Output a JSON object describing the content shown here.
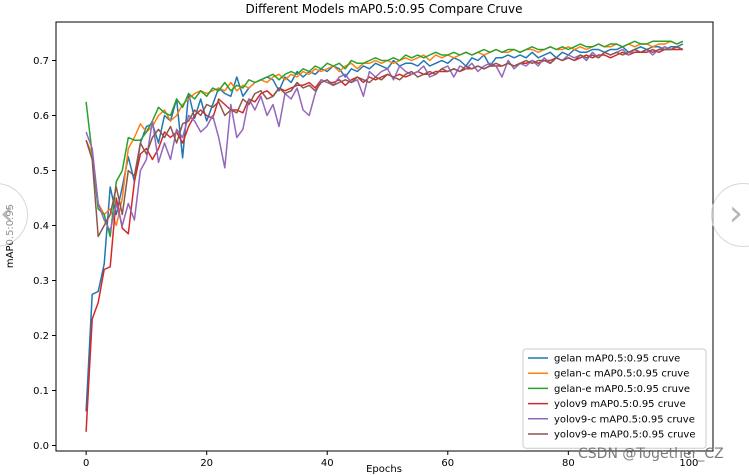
{
  "watermark": "CSDN @Together_CZ",
  "chart_data": {
    "type": "line",
    "title": "Different Models mAP0.5:0.95 Compare Cruve",
    "xlabel": "Epochs",
    "ylabel": "mAP0.5:0.95",
    "xlim": [
      -5,
      104
    ],
    "ylim": [
      -0.01,
      0.77
    ],
    "xticks": [
      0,
      20,
      40,
      60,
      80,
      100
    ],
    "yticks": [
      0.0,
      0.1,
      0.2,
      0.3,
      0.4,
      0.5,
      0.6,
      0.7
    ],
    "grid": false,
    "legend_position": "lower-right",
    "x": [
      0,
      1,
      2,
      3,
      4,
      5,
      6,
      7,
      8,
      9,
      10,
      11,
      12,
      13,
      14,
      15,
      16,
      17,
      18,
      19,
      20,
      21,
      22,
      23,
      24,
      25,
      26,
      27,
      28,
      29,
      30,
      31,
      32,
      33,
      34,
      35,
      36,
      37,
      38,
      39,
      40,
      41,
      42,
      43,
      44,
      45,
      46,
      47,
      48,
      49,
      50,
      51,
      52,
      53,
      54,
      55,
      56,
      57,
      58,
      59,
      60,
      61,
      62,
      63,
      64,
      65,
      66,
      67,
      68,
      69,
      70,
      71,
      72,
      73,
      74,
      75,
      76,
      77,
      78,
      79,
      80,
      81,
      82,
      83,
      84,
      85,
      86,
      87,
      88,
      89,
      90,
      91,
      92,
      93,
      94,
      95,
      96,
      97,
      98,
      99
    ],
    "series": [
      {
        "name": "gelan mAP0.5:0.95 cruve",
        "color": "#1f77b4",
        "values": [
          0.062,
          0.275,
          0.28,
          0.33,
          0.47,
          0.42,
          0.47,
          0.525,
          0.48,
          0.55,
          0.58,
          0.585,
          0.55,
          0.6,
          0.59,
          0.63,
          0.523,
          0.64,
          0.595,
          0.63,
          0.59,
          0.62,
          0.65,
          0.64,
          0.635,
          0.67,
          0.635,
          0.65,
          0.66,
          0.665,
          0.67,
          0.665,
          0.645,
          0.67,
          0.66,
          0.68,
          0.67,
          0.68,
          0.675,
          0.685,
          0.68,
          0.69,
          0.685,
          0.67,
          0.685,
          0.68,
          0.69,
          0.685,
          0.695,
          0.69,
          0.685,
          0.7,
          0.69,
          0.695,
          0.695,
          0.69,
          0.7,
          0.69,
          0.695,
          0.7,
          0.695,
          0.705,
          0.7,
          0.69,
          0.705,
          0.7,
          0.71,
          0.69,
          0.705,
          0.705,
          0.71,
          0.705,
          0.71,
          0.705,
          0.715,
          0.705,
          0.71,
          0.715,
          0.705,
          0.715,
          0.71,
          0.72,
          0.715,
          0.715,
          0.72,
          0.72,
          0.715,
          0.72,
          0.72,
          0.725,
          0.715,
          0.72,
          0.725,
          0.72,
          0.725,
          0.725,
          0.72,
          0.725,
          0.725,
          0.73
        ]
      },
      {
        "name": "gelan-c mAP0.5:0.95 cruve",
        "color": "#ff7f0e",
        "values": [
          0.555,
          0.53,
          0.44,
          0.42,
          0.43,
          0.4,
          0.45,
          0.54,
          0.56,
          0.585,
          0.57,
          0.58,
          0.6,
          0.61,
          0.59,
          0.6,
          0.62,
          0.63,
          0.64,
          0.645,
          0.64,
          0.645,
          0.65,
          0.645,
          0.66,
          0.645,
          0.655,
          0.65,
          0.66,
          0.665,
          0.66,
          0.67,
          0.675,
          0.665,
          0.675,
          0.67,
          0.68,
          0.675,
          0.685,
          0.68,
          0.685,
          0.69,
          0.68,
          0.69,
          0.695,
          0.685,
          0.695,
          0.695,
          0.7,
          0.695,
          0.7,
          0.695,
          0.7,
          0.705,
          0.7,
          0.705,
          0.71,
          0.7,
          0.71,
          0.705,
          0.71,
          0.705,
          0.71,
          0.715,
          0.71,
          0.715,
          0.71,
          0.715,
          0.72,
          0.715,
          0.715,
          0.72,
          0.715,
          0.72,
          0.72,
          0.715,
          0.72,
          0.725,
          0.72,
          0.72,
          0.725,
          0.72,
          0.725,
          0.72,
          0.725,
          0.73,
          0.725,
          0.725,
          0.73,
          0.725,
          0.73,
          0.725,
          0.73,
          0.73,
          0.725,
          0.73,
          0.73,
          0.735,
          0.73,
          0.735
        ]
      },
      {
        "name": "gelan-e mAP0.5:0.95 cruve",
        "color": "#2ca02c",
        "values": [
          0.625,
          0.53,
          0.43,
          0.42,
          0.38,
          0.48,
          0.5,
          0.56,
          0.555,
          0.555,
          0.57,
          0.59,
          0.615,
          0.605,
          0.6,
          0.63,
          0.615,
          0.64,
          0.63,
          0.645,
          0.635,
          0.65,
          0.645,
          0.66,
          0.645,
          0.655,
          0.65,
          0.665,
          0.66,
          0.665,
          0.67,
          0.675,
          0.665,
          0.675,
          0.68,
          0.675,
          0.685,
          0.68,
          0.69,
          0.685,
          0.695,
          0.69,
          0.695,
          0.685,
          0.7,
          0.695,
          0.695,
          0.7,
          0.705,
          0.7,
          0.7,
          0.705,
          0.7,
          0.71,
          0.705,
          0.71,
          0.705,
          0.71,
          0.715,
          0.71,
          0.71,
          0.715,
          0.71,
          0.715,
          0.71,
          0.715,
          0.72,
          0.715,
          0.72,
          0.715,
          0.72,
          0.72,
          0.715,
          0.72,
          0.725,
          0.72,
          0.72,
          0.725,
          0.72,
          0.725,
          0.72,
          0.725,
          0.73,
          0.725,
          0.725,
          0.73,
          0.725,
          0.73,
          0.73,
          0.725,
          0.73,
          0.735,
          0.73,
          0.73,
          0.735,
          0.735,
          0.735,
          0.735,
          0.73,
          0.735
        ]
      },
      {
        "name": "yolov9 mAP0.5:0.95 cruve",
        "color": "#d62728",
        "values": [
          0.025,
          0.23,
          0.26,
          0.32,
          0.325,
          0.45,
          0.395,
          0.385,
          0.48,
          0.53,
          0.54,
          0.52,
          0.54,
          0.57,
          0.56,
          0.57,
          0.55,
          0.58,
          0.6,
          0.61,
          0.6,
          0.595,
          0.63,
          0.62,
          0.61,
          0.61,
          0.605,
          0.63,
          0.625,
          0.64,
          0.645,
          0.635,
          0.65,
          0.645,
          0.65,
          0.655,
          0.655,
          0.66,
          0.65,
          0.665,
          0.66,
          0.66,
          0.665,
          0.655,
          0.665,
          0.67,
          0.66,
          0.67,
          0.665,
          0.67,
          0.675,
          0.67,
          0.675,
          0.67,
          0.675,
          0.68,
          0.675,
          0.675,
          0.68,
          0.68,
          0.68,
          0.685,
          0.68,
          0.685,
          0.685,
          0.69,
          0.685,
          0.69,
          0.69,
          0.69,
          0.695,
          0.69,
          0.695,
          0.695,
          0.7,
          0.695,
          0.7,
          0.7,
          0.705,
          0.7,
          0.705,
          0.7,
          0.705,
          0.71,
          0.705,
          0.71,
          0.71,
          0.705,
          0.71,
          0.715,
          0.71,
          0.715,
          0.715,
          0.715,
          0.72,
          0.715,
          0.72,
          0.72,
          0.72,
          0.72
        ]
      },
      {
        "name": "yolov9-c mAP0.5:0.95 cruve",
        "color": "#9467bd",
        "values": [
          0.57,
          0.54,
          0.44,
          0.41,
          0.39,
          0.44,
          0.4,
          0.44,
          0.41,
          0.5,
          0.52,
          0.59,
          0.515,
          0.55,
          0.52,
          0.575,
          0.56,
          0.6,
          0.59,
          0.57,
          0.58,
          0.6,
          0.56,
          0.505,
          0.62,
          0.56,
          0.575,
          0.63,
          0.61,
          0.635,
          0.6,
          0.62,
          0.58,
          0.64,
          0.63,
          0.65,
          0.61,
          0.6,
          0.64,
          0.665,
          0.66,
          0.655,
          0.67,
          0.675,
          0.66,
          0.665,
          0.635,
          0.68,
          0.67,
          0.68,
          0.685,
          0.665,
          0.69,
          0.68,
          0.675,
          0.68,
          0.69,
          0.67,
          0.675,
          0.685,
          0.69,
          0.67,
          0.69,
          0.685,
          0.695,
          0.68,
          0.69,
          0.695,
          0.69,
          0.67,
          0.7,
          0.685,
          0.695,
          0.69,
          0.7,
          0.69,
          0.705,
          0.695,
          0.705,
          0.7,
          0.71,
          0.705,
          0.71,
          0.7,
          0.715,
          0.705,
          0.715,
          0.71,
          0.715,
          0.72,
          0.71,
          0.72,
          0.715,
          0.72,
          0.71,
          0.72,
          0.725,
          0.72,
          0.725,
          0.72
        ]
      },
      {
        "name": "yolov9-e mAP0.5:0.95 cruve",
        "color": "#8c564b",
        "values": [
          0.555,
          0.52,
          0.38,
          0.4,
          0.42,
          0.47,
          0.42,
          0.5,
          0.49,
          0.55,
          0.53,
          0.56,
          0.575,
          0.56,
          0.58,
          0.55,
          0.585,
          0.59,
          0.61,
          0.6,
          0.62,
          0.615,
          0.625,
          0.6,
          0.61,
          0.605,
          0.63,
          0.62,
          0.64,
          0.645,
          0.63,
          0.635,
          0.65,
          0.64,
          0.645,
          0.66,
          0.65,
          0.655,
          0.645,
          0.66,
          0.665,
          0.655,
          0.66,
          0.665,
          0.66,
          0.67,
          0.665,
          0.66,
          0.67,
          0.665,
          0.675,
          0.67,
          0.665,
          0.675,
          0.68,
          0.67,
          0.675,
          0.68,
          0.675,
          0.685,
          0.68,
          0.685,
          0.68,
          0.69,
          0.685,
          0.69,
          0.685,
          0.69,
          0.695,
          0.69,
          0.695,
          0.69,
          0.695,
          0.7,
          0.695,
          0.7,
          0.7,
          0.695,
          0.705,
          0.7,
          0.705,
          0.7,
          0.71,
          0.705,
          0.71,
          0.705,
          0.715,
          0.71,
          0.715,
          0.71,
          0.715,
          0.72,
          0.715,
          0.72,
          0.715,
          0.72,
          0.72,
          0.72,
          0.725,
          0.72
        ]
      }
    ]
  }
}
